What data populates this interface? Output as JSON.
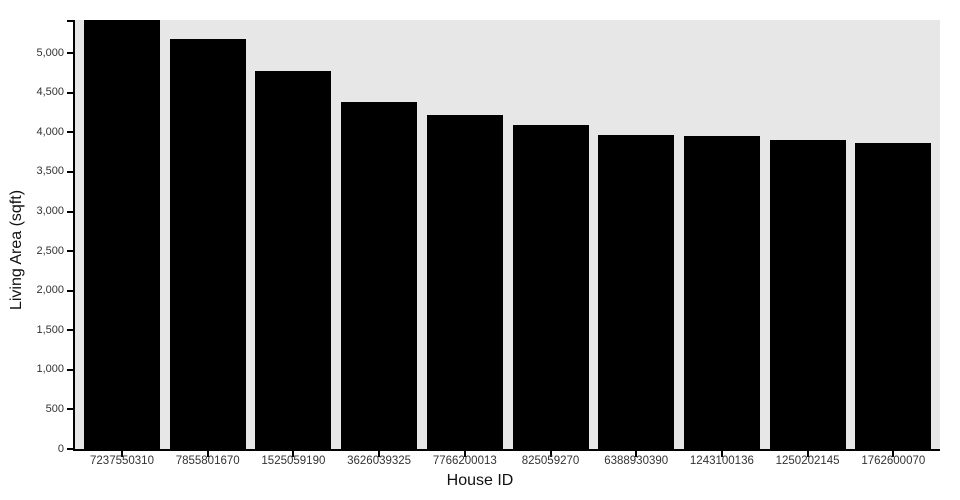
{
  "chart_data": {
    "type": "bar",
    "title": "",
    "xlabel": "House ID",
    "ylabel": "Living Area (sqft)",
    "categories": [
      "7237550310",
      "7855801670",
      "1525059190",
      "3626039325",
      "7766200013",
      "825059270",
      "6388930390",
      "1243100136",
      "1250202145",
      "1762600070"
    ],
    "values": [
      5420,
      5180,
      4780,
      4380,
      4220,
      4090,
      3970,
      3960,
      3910,
      3870
    ],
    "ylim": [
      0,
      5420
    ],
    "y_ticks": [
      {
        "value": 0,
        "label": "0"
      },
      {
        "value": 500,
        "label": "500"
      },
      {
        "value": 1000,
        "label": "1,000"
      },
      {
        "value": 1500,
        "label": "1,500"
      },
      {
        "value": 2000,
        "label": "2,000"
      },
      {
        "value": 2500,
        "label": "2,500"
      },
      {
        "value": 3000,
        "label": "3,000"
      },
      {
        "value": 3500,
        "label": "3,500"
      },
      {
        "value": 4000,
        "label": "4,000"
      },
      {
        "value": 4500,
        "label": "4,500"
      },
      {
        "value": 5000,
        "label": "5,000"
      }
    ],
    "grid": false,
    "legend": null,
    "layout": {
      "sort": "descending",
      "bar_orientation": "vertical"
    },
    "colors": {
      "bar": "#000000",
      "plot_background": "#e7e7e7",
      "page_background": "#ffffff",
      "axis": "#000000",
      "tick_label": "#333333",
      "axis_title": "#111111"
    }
  }
}
